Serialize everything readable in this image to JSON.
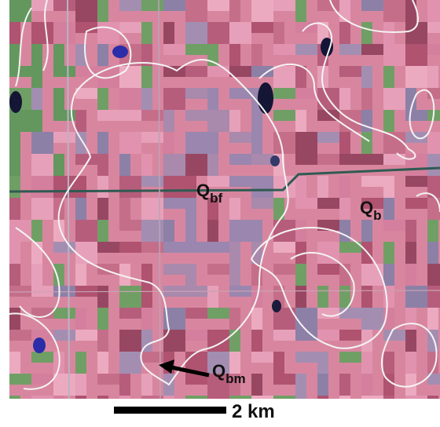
{
  "labels": [
    {
      "main": "Q",
      "sub": "bf"
    },
    {
      "main": "Q",
      "sub": "b"
    },
    {
      "main": "Q",
      "sub": "bm"
    }
  ],
  "scale_bar": {
    "label": "2 km"
  }
}
